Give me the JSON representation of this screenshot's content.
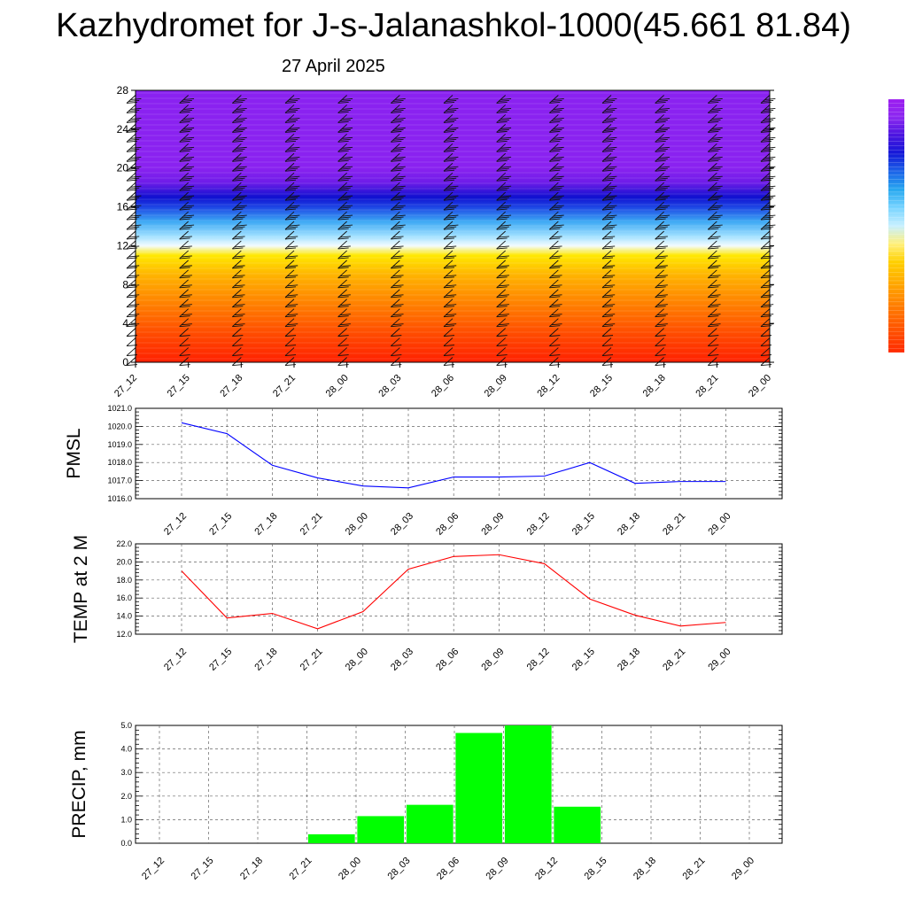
{
  "title": "Kazhydromet for J-s-Jalanashkol-1000(45.661 81.84)",
  "subtitle": "27 April 2025",
  "times": [
    "27_12",
    "27_15",
    "27_18",
    "27_21",
    "28_00",
    "28_03",
    "28_06",
    "28_09",
    "28_12",
    "28_15",
    "28_18",
    "28_21",
    "29_00"
  ],
  "colorbar": {
    "colors": [
      "#ff2b00",
      "#ff4a00",
      "#ff6a00",
      "#ff8c00",
      "#ffae00",
      "#ffd000",
      "#fff07a",
      "#c8f0ff",
      "#78d4ff",
      "#28a8f0",
      "#1c64e8",
      "#1418d8",
      "#4a14e0",
      "#8c28f0",
      "#9c1cf0"
    ]
  },
  "chart_data": [
    {
      "type": "heatmap",
      "title": "",
      "xlabel": "",
      "ylabel": "",
      "ylim": [
        0,
        28
      ],
      "yticks": [
        "0",
        "4",
        "8",
        "12",
        "16",
        "20",
        "24",
        "28"
      ],
      "colormap_stops": [
        {
          "y": 0,
          "color": "#ff2000"
        },
        {
          "y": 3,
          "color": "#ff4c00"
        },
        {
          "y": 6,
          "color": "#ff8000"
        },
        {
          "y": 9,
          "color": "#ffb400"
        },
        {
          "y": 11,
          "color": "#ffe800"
        },
        {
          "y": 12,
          "color": "#f2fbff"
        },
        {
          "y": 13,
          "color": "#a0e0ff"
        },
        {
          "y": 14.5,
          "color": "#3ca8f4"
        },
        {
          "y": 16,
          "color": "#1c44e4"
        },
        {
          "y": 17,
          "color": "#1010d0"
        },
        {
          "y": 18.5,
          "color": "#6e1ce8"
        },
        {
          "y": 20,
          "color": "#8a22f0"
        },
        {
          "y": 28,
          "color": "#8a22f0"
        }
      ],
      "wind_barbs": true
    },
    {
      "type": "line",
      "xlabel": "",
      "ylabel": "PMSL",
      "ylim": [
        1016.0,
        1021.0
      ],
      "yticks": [
        "1016.0",
        "1017.0",
        "1018.0",
        "1019.0",
        "1020.0",
        "1021.0"
      ],
      "color": "#0000ff",
      "values": [
        1020.2,
        1019.6,
        1017.85,
        1017.15,
        1016.7,
        1016.6,
        1017.2,
        1017.2,
        1017.25,
        1018.0,
        1016.85,
        1016.95,
        1016.95
      ],
      "grid": true
    },
    {
      "type": "line",
      "xlabel": "",
      "ylabel": "TEMP at 2 M",
      "ylim": [
        12.0,
        22.0
      ],
      "yticks": [
        "12.0",
        "14.0",
        "16.0",
        "18.0",
        "20.0",
        "22.0"
      ],
      "color": "#ff0000",
      "values": [
        19.0,
        13.8,
        14.3,
        12.6,
        14.5,
        19.2,
        20.6,
        20.8,
        19.8,
        15.9,
        14.1,
        12.9,
        13.3
      ],
      "grid": true
    },
    {
      "type": "bar",
      "xlabel": "",
      "ylabel": "PRECIP, mm",
      "ylim": [
        0.0,
        5.0
      ],
      "yticks": [
        "0.0",
        "1.0",
        "2.0",
        "3.0",
        "4.0",
        "5.0"
      ],
      "color": "#00ff00",
      "values": [
        0,
        0,
        0,
        0,
        0.38,
        1.15,
        1.63,
        4.68,
        5.0,
        1.55,
        0,
        0,
        0
      ],
      "grid": true
    }
  ]
}
